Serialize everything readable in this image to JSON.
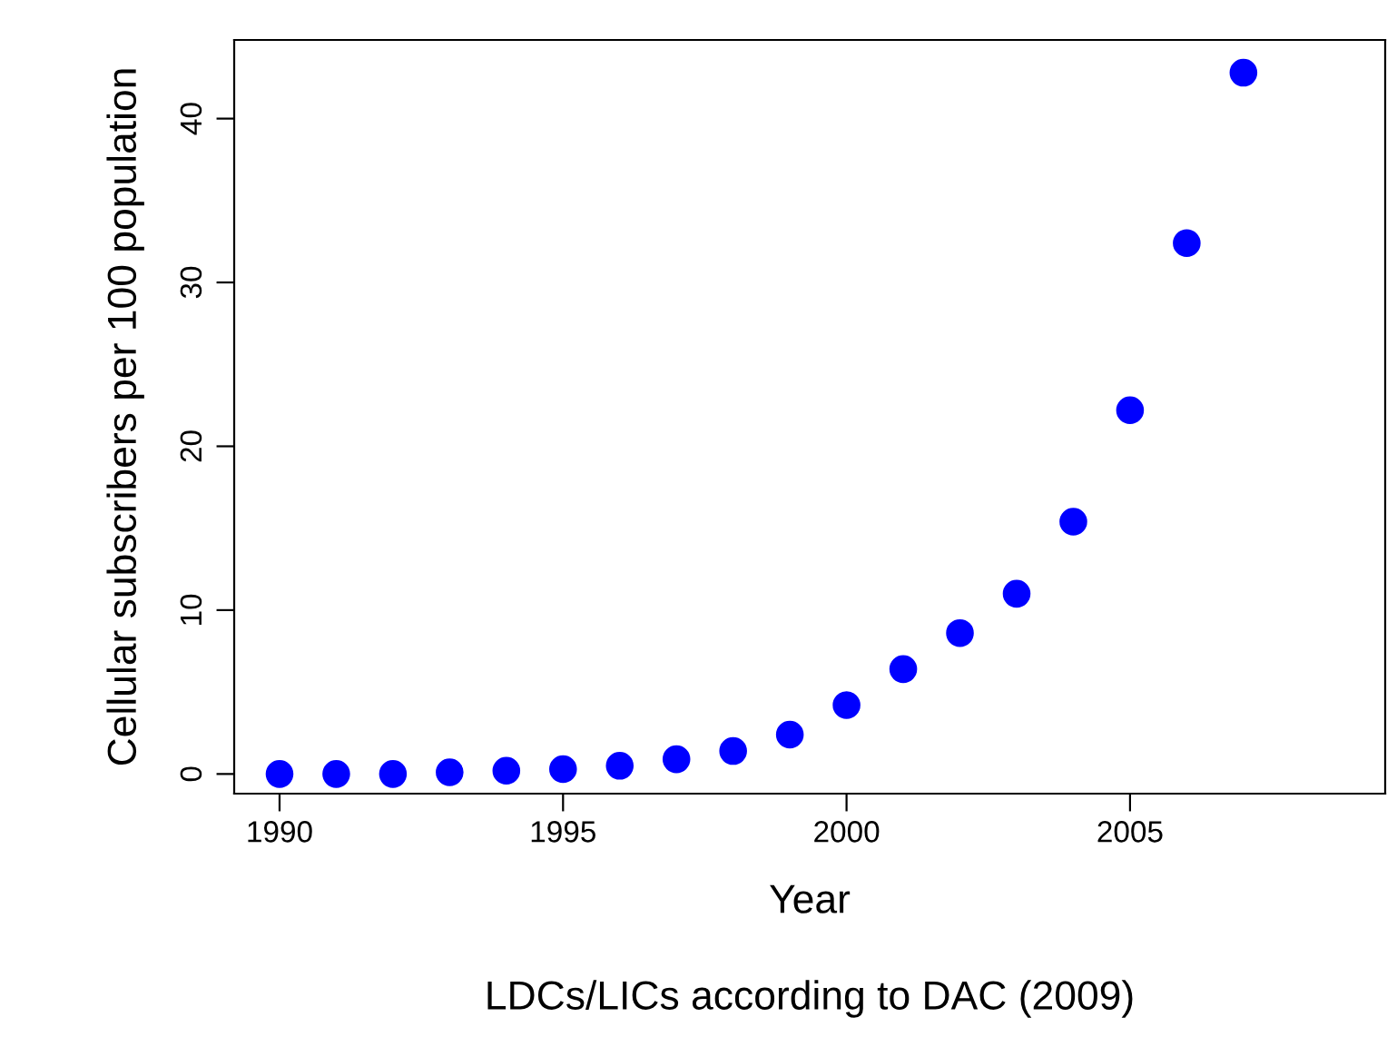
{
  "chart_data": {
    "type": "scatter",
    "xlabel": "Year",
    "ylabel": "Cellular subscribers per 100 population",
    "annotations": [
      "LDCs/LICs according to DAC (2009)"
    ],
    "x": [
      1990,
      1991,
      1992,
      1993,
      1994,
      1995,
      1996,
      1997,
      1998,
      1999,
      2000,
      2001,
      2002,
      2003,
      2004,
      2005,
      2006,
      2007
    ],
    "series": [
      {
        "color": "#0000ff",
        "values": [
          0.0,
          0.0,
          0.0,
          0.1,
          0.2,
          0.3,
          0.5,
          0.9,
          1.4,
          2.4,
          4.2,
          6.4,
          8.6,
          11.0,
          15.4,
          22.2,
          32.4,
          42.8
        ]
      }
    ],
    "marker": "circle",
    "grid": false,
    "legend": false,
    "xlim": [
      1989.2,
      2009.5
    ],
    "ylim": [
      -1.2,
      44.8
    ],
    "xticks": [
      1990,
      1995,
      2000,
      2005
    ],
    "yticks": [
      0,
      10,
      20,
      30,
      40
    ]
  }
}
